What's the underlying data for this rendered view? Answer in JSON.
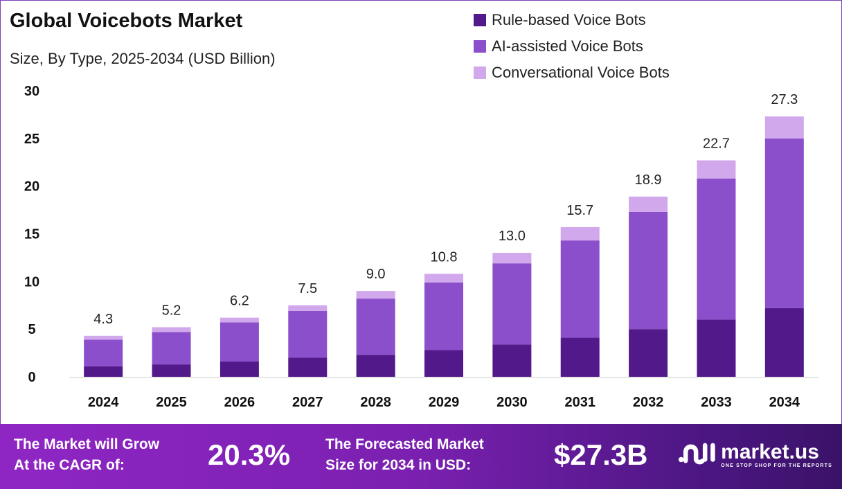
{
  "chart_data": {
    "type": "bar",
    "stacked": true,
    "title": "Global Voicebots Market",
    "subtitle": "Size, By Type, 2025-2034 (USD Billion)",
    "xlabel": "",
    "ylabel": "",
    "ylim": [
      0,
      30
    ],
    "yticks": [
      0,
      5,
      10,
      15,
      20,
      25,
      30
    ],
    "grid": false,
    "legend_position": "top-right",
    "categories": [
      "2024",
      "2025",
      "2026",
      "2027",
      "2028",
      "2029",
      "2030",
      "2031",
      "2032",
      "2033",
      "2034"
    ],
    "series": [
      {
        "name": "Rule-based Voice Bots",
        "color": "#52198a",
        "values": [
          1.1,
          1.3,
          1.6,
          2.0,
          2.3,
          2.8,
          3.4,
          4.1,
          5.0,
          6.0,
          7.2
        ]
      },
      {
        "name": "AI-assisted Voice Bots",
        "color": "#8b4fcc",
        "values": [
          2.8,
          3.4,
          4.1,
          4.9,
          5.9,
          7.1,
          8.5,
          10.2,
          12.3,
          14.8,
          17.8
        ]
      },
      {
        "name": "Conversational Voice Bots",
        "color": "#d2a8ec",
        "values": [
          0.4,
          0.5,
          0.5,
          0.6,
          0.8,
          0.9,
          1.1,
          1.4,
          1.6,
          1.9,
          2.3
        ]
      }
    ],
    "totals": [
      "4.3",
      "5.2",
      "6.2",
      "7.5",
      "9.0",
      "10.8",
      "13.0",
      "15.7",
      "18.9",
      "22.7",
      "27.3"
    ]
  },
  "footer": {
    "cagr_label_1": "The Market will Grow",
    "cagr_label_2": "At the CAGR of:",
    "cagr_value": "20.3%",
    "forecast_label_1": "The Forecasted Market",
    "forecast_label_2": "Size for 2034 in USD:",
    "forecast_value": "$27.3B",
    "logo_name": "market.us",
    "logo_tagline": "ONE STOP SHOP FOR THE REPORTS"
  }
}
